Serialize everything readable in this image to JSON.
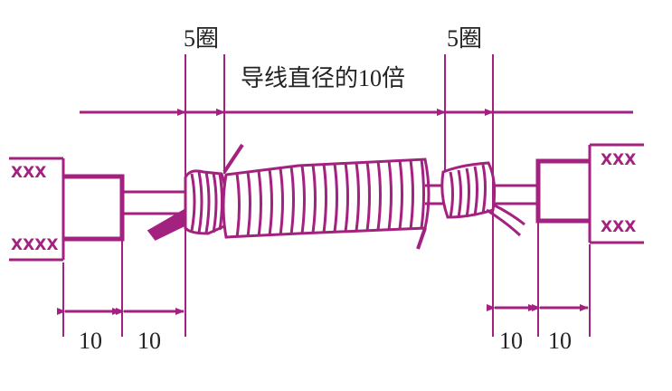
{
  "labels": {
    "turns_left": "5圈",
    "turns_right": "5圈",
    "diameter_note": "导线直径的10倍",
    "dim_left_1": "10",
    "dim_left_2": "10",
    "dim_right_1": "10",
    "dim_right_2": "10"
  },
  "colors": {
    "line": "#a3217f",
    "fill": "#a3217f",
    "text": "#222222"
  }
}
